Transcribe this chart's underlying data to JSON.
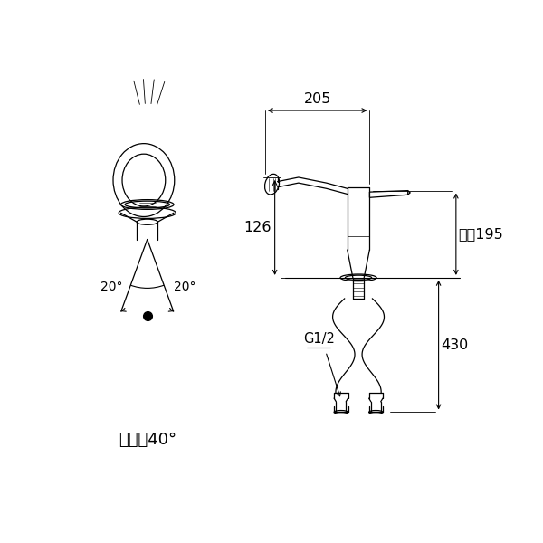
{
  "bg_color": "#ffffff",
  "line_color": "#000000",
  "dim_color": "#000000",
  "dim_205_label": "205",
  "dim_126_label": "126",
  "dim_195_label": "最大195",
  "dim_430_label": "430",
  "g12_label": "G1/2",
  "swing_label": "首振り40°",
  "angle_left": "20°",
  "angle_right": "20°"
}
